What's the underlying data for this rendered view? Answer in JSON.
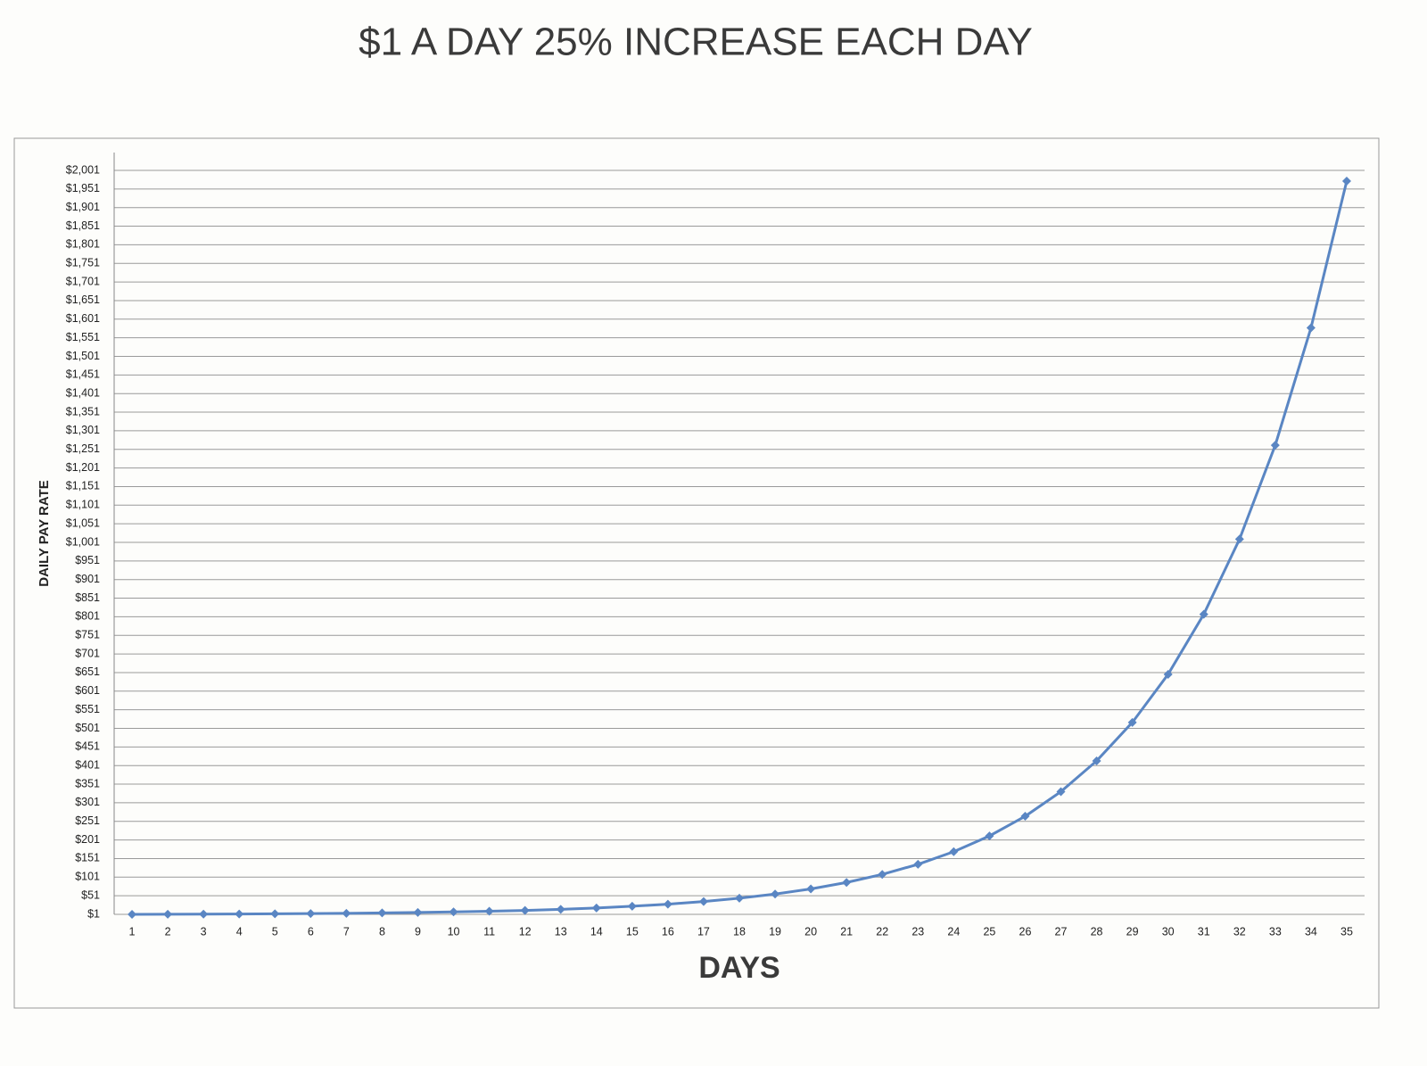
{
  "chart_data": {
    "type": "line",
    "title": "$1 A DAY 25% INCREASE EACH DAY",
    "x_label": "DAYS",
    "y_label": "DAILY PAY RATE",
    "categories": [
      "1",
      "2",
      "3",
      "4",
      "5",
      "6",
      "7",
      "8",
      "9",
      "10",
      "11",
      "12",
      "13",
      "14",
      "15",
      "16",
      "17",
      "18",
      "19",
      "20",
      "21",
      "22",
      "23",
      "24",
      "25",
      "26",
      "27",
      "28",
      "29",
      "30",
      "31",
      "32",
      "33",
      "34",
      "35"
    ],
    "series": [
      {
        "color": "#5a86c3",
        "values": [
          1,
          1.25,
          1.56,
          1.95,
          2.44,
          3.05,
          3.81,
          4.77,
          5.96,
          7.45,
          9.31,
          11.64,
          14.55,
          18.19,
          22.74,
          28.42,
          35.53,
          44.41,
          55.51,
          69.39,
          86.74,
          108.42,
          135.53,
          169.41,
          211.76,
          264.7,
          330.87,
          413.59,
          516.99,
          646.23,
          807.79,
          1009.74,
          1262.18,
          1577.72,
          1972.15
        ]
      }
    ],
    "ylim": [
      1,
      2001
    ],
    "yticks": [
      {
        "value": 1,
        "label": "$1"
      },
      {
        "value": 51,
        "label": "$51"
      },
      {
        "value": 101,
        "label": "$101"
      },
      {
        "value": 151,
        "label": "$151"
      },
      {
        "value": 201,
        "label": "$201"
      },
      {
        "value": 251,
        "label": "$251"
      },
      {
        "value": 301,
        "label": "$301"
      },
      {
        "value": 351,
        "label": "$351"
      },
      {
        "value": 401,
        "label": "$401"
      },
      {
        "value": 451,
        "label": "$451"
      },
      {
        "value": 501,
        "label": "$501"
      },
      {
        "value": 551,
        "label": "$551"
      },
      {
        "value": 601,
        "label": "$601"
      },
      {
        "value": 651,
        "label": "$651"
      },
      {
        "value": 701,
        "label": "$701"
      },
      {
        "value": 751,
        "label": "$751"
      },
      {
        "value": 801,
        "label": "$801"
      },
      {
        "value": 851,
        "label": "$851"
      },
      {
        "value": 901,
        "label": "$901"
      },
      {
        "value": 951,
        "label": "$951"
      },
      {
        "value": 1001,
        "label": "$1,001"
      },
      {
        "value": 1051,
        "label": "$1,051"
      },
      {
        "value": 1101,
        "label": "$1,101"
      },
      {
        "value": 1151,
        "label": "$1,151"
      },
      {
        "value": 1201,
        "label": "$1,201"
      },
      {
        "value": 1251,
        "label": "$1,251"
      },
      {
        "value": 1301,
        "label": "$1,301"
      },
      {
        "value": 1351,
        "label": "$1,351"
      },
      {
        "value": 1401,
        "label": "$1,401"
      },
      {
        "value": 1451,
        "label": "$1,451"
      },
      {
        "value": 1501,
        "label": "$1,501"
      },
      {
        "value": 1551,
        "label": "$1,551"
      },
      {
        "value": 1601,
        "label": "$1,601"
      },
      {
        "value": 1651,
        "label": "$1,651"
      },
      {
        "value": 1701,
        "label": "$1,701"
      },
      {
        "value": 1751,
        "label": "$1,751"
      },
      {
        "value": 1801,
        "label": "$1,801"
      },
      {
        "value": 1851,
        "label": "$1,851"
      },
      {
        "value": 1901,
        "label": "$1,901"
      },
      {
        "value": 1951,
        "label": "$1,951"
      },
      {
        "value": 2001,
        "label": "$2,001"
      }
    ],
    "grid": true
  }
}
